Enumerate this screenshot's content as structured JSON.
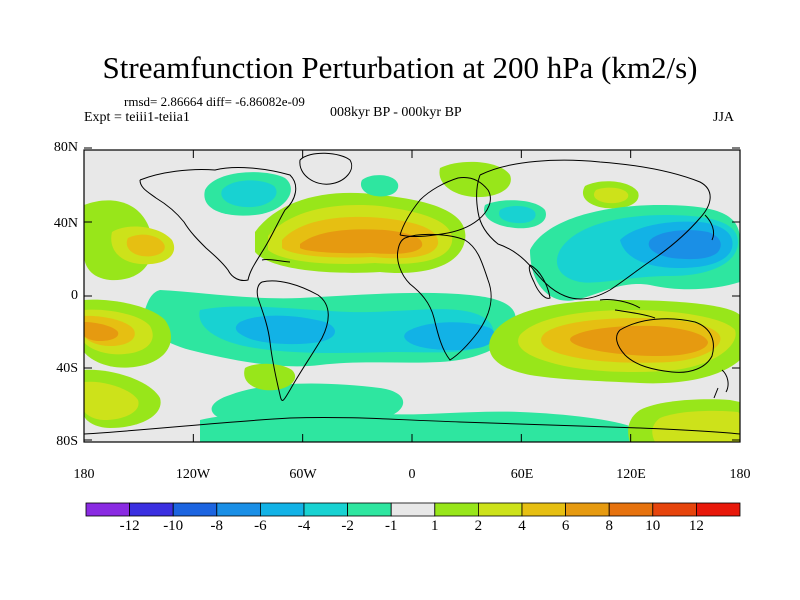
{
  "title": "Streamfunction Perturbation at 200 hPa (km2/s)",
  "stats_line": "rmsd= 2.86664 diff= -6.86082e-09",
  "experiment_line": "Expt = teiii1-teiia1",
  "center_label": "008kyr BP - 000kyr BP",
  "season": "JJA",
  "lat_labels": [
    "80N",
    "40N",
    "0",
    "40S",
    "80S"
  ],
  "lon_labels": [
    "180",
    "120W",
    "60W",
    "0",
    "60E",
    "120E",
    "180"
  ],
  "colorbar": {
    "labels": [
      "-12",
      "-10",
      "-8",
      "-6",
      "-4",
      "-2",
      "-1",
      "1",
      "2",
      "4",
      "6",
      "8",
      "10",
      "12"
    ],
    "colors": [
      "#8a2be2",
      "#3b2fe0",
      "#1c64e0",
      "#1a8fe6",
      "#12b2e6",
      "#18d2d2",
      "#2ee6a0",
      "#e8e8e8",
      "#98e61a",
      "#cde21a",
      "#e6bf12",
      "#e69a10",
      "#e6720e",
      "#e6440c",
      "#e8180a"
    ]
  },
  "map_fill_colors": {
    "neutral": "#e8e8e8",
    "neg1": "#2ee6a0",
    "neg2": "#18d2d2",
    "neg4": "#12b2e6",
    "neg6": "#1a8fe6",
    "pos1": "#98e61a",
    "pos2": "#cde21a",
    "pos4": "#e6bf12",
    "pos6": "#e69a10"
  }
}
